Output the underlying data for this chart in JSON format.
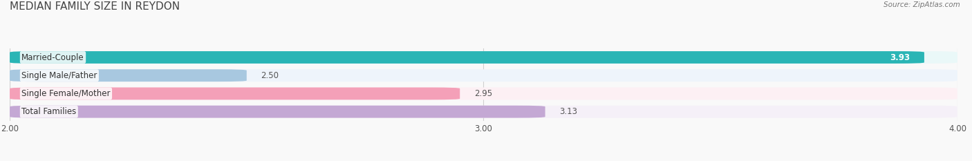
{
  "title": "MEDIAN FAMILY SIZE IN REYDON",
  "source": "Source: ZipAtlas.com",
  "categories": [
    "Married-Couple",
    "Single Male/Father",
    "Single Female/Mother",
    "Total Families"
  ],
  "values": [
    3.93,
    2.5,
    2.95,
    3.13
  ],
  "bar_colors": [
    "#2ab5b5",
    "#a8c8e0",
    "#f4a0b8",
    "#c4a8d4"
  ],
  "bar_bg_colors": [
    "#eaf8f8",
    "#eef4fb",
    "#fdf0f4",
    "#f5f0f8"
  ],
  "xmin": 2.0,
  "xmax": 4.0,
  "xticks": [
    2.0,
    3.0,
    4.0
  ],
  "xtick_labels": [
    "2.00",
    "3.00",
    "4.00"
  ],
  "background_color": "#f9f9f9",
  "title_fontsize": 11,
  "label_fontsize": 8.5,
  "value_fontsize": 8.5,
  "tick_fontsize": 8.5
}
